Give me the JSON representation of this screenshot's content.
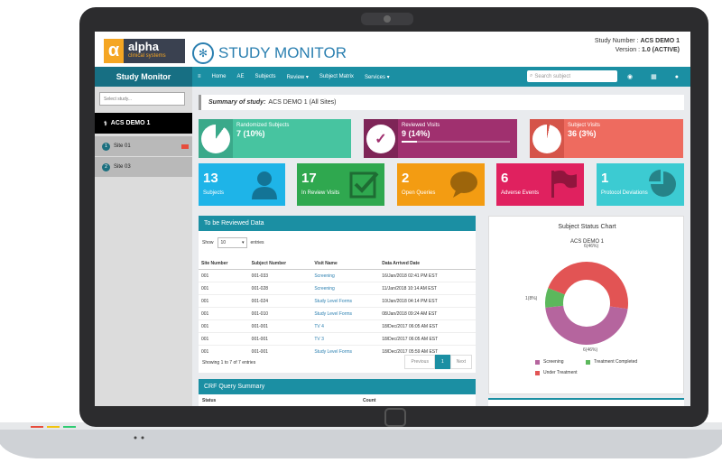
{
  "header": {
    "app_title": "STUDY MONITOR",
    "logo_word": "alpha",
    "logo_sub": "clinical systems",
    "study_number_label": "Study Number :",
    "study_number": "ACS DEMO 1",
    "version_label": "Version :",
    "version": "1.0 (ACTIVE)"
  },
  "nav": {
    "brand": "Study Monitor",
    "items": [
      "≡",
      "Home",
      "AE",
      "Subjects",
      "Review ▾",
      "Subject Matrix",
      "Services ▾"
    ],
    "search_placeholder": "Search subject"
  },
  "sidebar": {
    "select_placeholder": "Select study...",
    "study": "ACS DEMO 1",
    "sites": [
      {
        "num": "1",
        "name": "Site 01"
      },
      {
        "num": "2",
        "name": "Site 03"
      }
    ]
  },
  "summary": {
    "label": "Summary of study:",
    "value": "ACS DEMO 1 (All Sites)"
  },
  "progress_boxes": [
    {
      "label": "Randomized Subjects",
      "value": "7 (10%)",
      "fraction": 0.1,
      "color": "#47c4a0",
      "dark": "#3aa98a"
    },
    {
      "label": "Reviewed Visits",
      "value": "9 (14%)",
      "fraction": 0.14,
      "color": "#a0306f",
      "dark": "#7e2557"
    },
    {
      "label": "Subject Visits",
      "value": "36 (3%)",
      "fraction": 0.03,
      "color": "#ee6b5f",
      "dark": "#d55449"
    }
  ],
  "stat_boxes": [
    {
      "number": "13",
      "label": "Subjects",
      "color": "#1eb4e8",
      "icon": "user-icon"
    },
    {
      "number": "17",
      "label": "In Review Visits",
      "color": "#2fa84f",
      "icon": "check-icon"
    },
    {
      "number": "2",
      "label": "Open Queries",
      "color": "#f39c12",
      "icon": "comment-icon"
    },
    {
      "number": "6",
      "label": "Adverse Events",
      "color": "#e0215f",
      "icon": "flag-icon"
    },
    {
      "number": "1",
      "label": "Protocol Deviations",
      "color": "#3ccbd2",
      "icon": "pie-icon"
    }
  ],
  "review_table": {
    "title": "To be Reviewed Data",
    "show_label": "Show",
    "show_value": "10",
    "entries_label": "entries",
    "columns": [
      "Site Number",
      "Subject Number",
      "Visit Name",
      "Data Arrived Date"
    ],
    "rows": [
      [
        "001",
        "001-033",
        "Screening",
        "16/Jan/2018 02:41 PM EST"
      ],
      [
        "001",
        "001-028",
        "Screening",
        "11/Jan/2018 10:14 AM EST"
      ],
      [
        "001",
        "001-024",
        "Study Level Forms",
        "10/Jan/2018 04:14 PM EST"
      ],
      [
        "001",
        "001-010",
        "Study Level Forms",
        "08/Jan/2018 09:24 AM EST"
      ],
      [
        "001",
        "001-001",
        "TV 4",
        "18/Dec/2017 06:05 AM EST"
      ],
      [
        "001",
        "001-001",
        "TV 3",
        "18/Dec/2017 06:05 AM EST"
      ],
      [
        "001",
        "001-001",
        "Study Level Forms",
        "18/Dec/2017 05:59 AM EST"
      ]
    ],
    "footer": "Showing 1 to 7 of 7 entries",
    "pager": {
      "prev": "Previous",
      "page": "1",
      "next": "Next"
    }
  },
  "crf": {
    "title": "CRF Query Summary",
    "columns": [
      "Status",
      "Count"
    ]
  },
  "chart_data": {
    "type": "pie",
    "title": "Subject Status Chart",
    "subtitle": "ACS DEMO 1",
    "slices": [
      {
        "name": "Screening",
        "value": 6,
        "label": "6(46%)",
        "color": "#b5659e"
      },
      {
        "name": "Treatment Completed",
        "value": 1,
        "label": "1(8%)",
        "color": "#5cb85c"
      },
      {
        "name": "Under Treatment",
        "value": 6,
        "label": "6(46%)",
        "color": "#e25454"
      }
    ],
    "legend_position": "bottom"
  }
}
